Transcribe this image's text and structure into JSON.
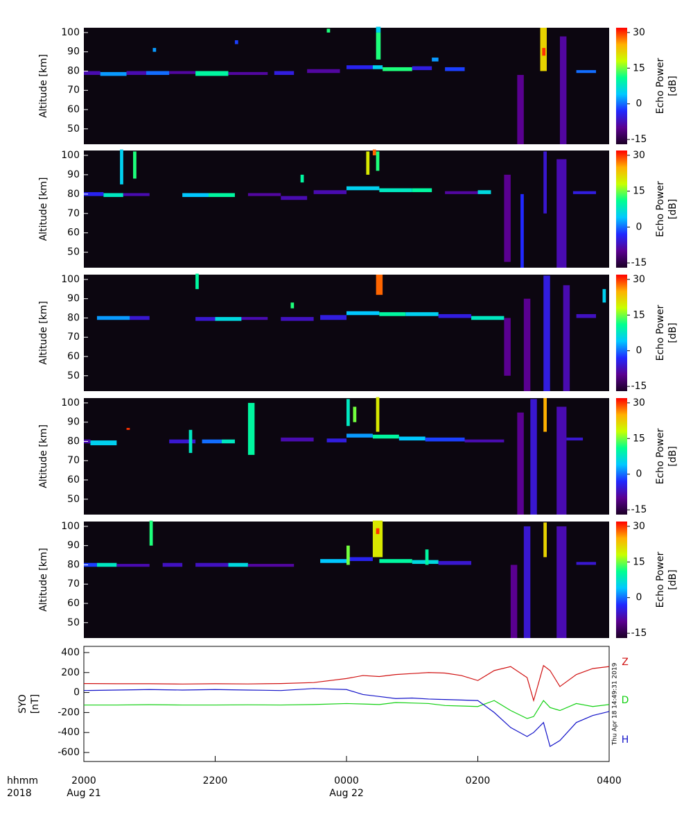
{
  "chart_data": [
    {
      "type": "heatmap",
      "ylabel": "Altitude [km]",
      "colorbar_label": [
        "Echo Power",
        "[dB]"
      ],
      "xlim": [
        20,
        28
      ],
      "ylim": [
        42,
        102.5
      ],
      "yticks": [
        50,
        60,
        70,
        80,
        90,
        100
      ],
      "clim": [
        -17,
        32
      ],
      "cticks": [
        -15,
        0,
        15,
        30
      ],
      "background": "#0c0610",
      "colormap": [
        "#1a0024",
        "#5a0090",
        "#2028ff",
        "#00c8ff",
        "#00ff90",
        "#c8ff00",
        "#ffb000",
        "#ff0000"
      ],
      "echoes": [
        [
          20,
          20.25,
          78,
          80,
          -8
        ],
        [
          20.25,
          20.65,
          77.5,
          79.5,
          2
        ],
        [
          20.65,
          20.95,
          78,
          80,
          -8
        ],
        [
          20.95,
          21.3,
          78,
          80,
          0
        ],
        [
          21.3,
          21.7,
          78.5,
          80,
          -9
        ],
        [
          21.7,
          22.2,
          77.5,
          80,
          10
        ],
        [
          22.2,
          22.8,
          78,
          79.5,
          -9
        ],
        [
          22.9,
          23.2,
          78,
          80,
          -5
        ],
        [
          23.4,
          23.9,
          79,
          81,
          -9
        ],
        [
          24.0,
          24.4,
          81,
          83,
          -4
        ],
        [
          24.4,
          24.55,
          81,
          83,
          5
        ],
        [
          24.55,
          25.0,
          80,
          82,
          12
        ],
        [
          25.0,
          25.3,
          80.5,
          82.5,
          -5
        ],
        [
          25.5,
          25.8,
          80,
          82,
          -2
        ],
        [
          24.45,
          24.52,
          86,
          100,
          12
        ],
        [
          24.45,
          24.52,
          100,
          103,
          5
        ],
        [
          26.6,
          26.7,
          42,
          78,
          -10
        ],
        [
          26.95,
          27.05,
          80,
          102.5,
          22
        ],
        [
          26.98,
          27.03,
          88,
          92,
          30
        ],
        [
          27.25,
          27.35,
          42,
          98,
          -9
        ],
        [
          27.5,
          27.8,
          79,
          80.5,
          0
        ],
        [
          25.3,
          25.4,
          85,
          87,
          2
        ],
        [
          21.05,
          21.1,
          90,
          92,
          2
        ],
        [
          23.7,
          23.75,
          100,
          102,
          12
        ],
        [
          22.3,
          22.35,
          94,
          96,
          -2
        ]
      ]
    },
    {
      "type": "heatmap",
      "ylabel": "Altitude [km]",
      "colorbar_label": [
        "Echo Power",
        "[dB]"
      ],
      "xlim": [
        20,
        28
      ],
      "ylim": [
        42,
        102.5
      ],
      "yticks": [
        50,
        60,
        70,
        80,
        90,
        100
      ],
      "clim": [
        -17,
        32
      ],
      "cticks": [
        -15,
        0,
        15,
        30
      ],
      "background": "#0c0610",
      "colormap": [
        "#1a0024",
        "#5a0090",
        "#2028ff",
        "#00c8ff",
        "#00ff90",
        "#c8ff00",
        "#ffb000",
        "#ff0000"
      ],
      "echoes": [
        [
          20,
          20.3,
          79,
          81,
          -4
        ],
        [
          20.3,
          20.6,
          78.5,
          80.5,
          8
        ],
        [
          20.6,
          21.0,
          79,
          80.5,
          -8
        ],
        [
          21.5,
          21.9,
          78.5,
          80.5,
          4
        ],
        [
          21.9,
          22.3,
          78.5,
          80.5,
          10
        ],
        [
          22.5,
          23.0,
          79,
          80.5,
          -9
        ],
        [
          23.0,
          23.4,
          77,
          79,
          -8
        ],
        [
          23.5,
          24.0,
          80,
          82,
          -8
        ],
        [
          24.0,
          24.5,
          82,
          84,
          5
        ],
        [
          24.5,
          25.0,
          81,
          83,
          8
        ],
        [
          25.0,
          25.3,
          81,
          83,
          10
        ],
        [
          25.5,
          26.0,
          80,
          81.5,
          -9
        ],
        [
          26.0,
          26.2,
          80,
          82,
          6
        ],
        [
          20.55,
          20.6,
          85,
          103,
          5
        ],
        [
          20.75,
          20.8,
          88,
          102,
          12
        ],
        [
          24.3,
          24.35,
          90,
          102,
          20
        ],
        [
          24.45,
          24.5,
          92,
          102,
          12
        ],
        [
          23.3,
          23.35,
          86,
          90,
          10
        ],
        [
          26.4,
          26.5,
          45,
          90,
          -10
        ],
        [
          26.65,
          26.7,
          42,
          80,
          -3
        ],
        [
          27.0,
          27.05,
          70,
          102,
          -6
        ],
        [
          27.2,
          27.35,
          42,
          98,
          -8
        ],
        [
          27.45,
          27.8,
          80,
          81.5,
          -5
        ],
        [
          24.4,
          24.45,
          100,
          103,
          28
        ]
      ]
    },
    {
      "type": "heatmap",
      "ylabel": "Altitude [km]",
      "colorbar_label": [
        "Echo Power",
        "[dB]"
      ],
      "xlim": [
        20,
        28
      ],
      "ylim": [
        42,
        102.5
      ],
      "yticks": [
        50,
        60,
        70,
        80,
        90,
        100
      ],
      "clim": [
        -17,
        32
      ],
      "cticks": [
        -15,
        0,
        15,
        30
      ],
      "background": "#0c0610",
      "colormap": [
        "#1a0024",
        "#5a0090",
        "#2028ff",
        "#00c8ff",
        "#00ff90",
        "#c8ff00",
        "#ffb000",
        "#ff0000"
      ],
      "echoes": [
        [
          20.2,
          20.7,
          79,
          81,
          2
        ],
        [
          20.7,
          21.0,
          79,
          81,
          -6
        ],
        [
          21.7,
          22.0,
          78.5,
          80.5,
          -6
        ],
        [
          22.0,
          22.4,
          78.5,
          80.5,
          6
        ],
        [
          22.4,
          22.8,
          79,
          80.5,
          -8
        ],
        [
          23.0,
          23.5,
          78.5,
          80.5,
          -7
        ],
        [
          23.6,
          24.0,
          79,
          81.5,
          -5
        ],
        [
          24.0,
          24.5,
          81.5,
          83.5,
          4
        ],
        [
          24.5,
          24.9,
          81,
          83,
          10
        ],
        [
          24.9,
          25.4,
          81,
          83,
          5
        ],
        [
          25.4,
          25.9,
          80,
          82,
          -5
        ],
        [
          25.9,
          26.4,
          79,
          81,
          8
        ],
        [
          24.45,
          24.55,
          92,
          102.5,
          28
        ],
        [
          23.15,
          23.2,
          85,
          88,
          12
        ],
        [
          26.4,
          26.5,
          50,
          80,
          -10
        ],
        [
          26.7,
          26.8,
          42,
          90,
          -10
        ],
        [
          27.0,
          27.1,
          42,
          102,
          -5
        ],
        [
          27.3,
          27.4,
          42,
          97,
          -8
        ],
        [
          27.5,
          27.8,
          80,
          82,
          -7
        ],
        [
          21.7,
          21.75,
          95,
          103,
          10
        ],
        [
          27.9,
          27.95,
          88,
          95,
          5
        ]
      ]
    },
    {
      "type": "heatmap",
      "ylabel": "Altitude [km]",
      "colorbar_label": [
        "Echo Power",
        "[dB]"
      ],
      "xlim": [
        20,
        28
      ],
      "ylim": [
        42,
        102.5
      ],
      "yticks": [
        50,
        60,
        70,
        80,
        90,
        100
      ],
      "clim": [
        -17,
        32
      ],
      "cticks": [
        -15,
        0,
        15,
        30
      ],
      "background": "#0c0610",
      "colormap": [
        "#1a0024",
        "#5a0090",
        "#2028ff",
        "#00c8ff",
        "#00ff90",
        "#c8ff00",
        "#ffb000",
        "#ff0000"
      ],
      "echoes": [
        [
          20,
          20.1,
          79,
          81,
          -8
        ],
        [
          20.1,
          20.5,
          78,
          80.5,
          5
        ],
        [
          21.3,
          21.7,
          79,
          81,
          -6
        ],
        [
          21.8,
          22.1,
          79,
          81,
          0
        ],
        [
          22.1,
          22.3,
          79,
          81,
          8
        ],
        [
          23.0,
          23.5,
          80,
          82,
          -8
        ],
        [
          23.7,
          24.0,
          79.5,
          81.5,
          -5
        ],
        [
          24.0,
          24.4,
          82,
          84,
          2
        ],
        [
          24.4,
          24.8,
          81.5,
          83.5,
          10
        ],
        [
          24.8,
          25.2,
          80.5,
          82.5,
          4
        ],
        [
          25.2,
          25.8,
          80,
          82,
          -2
        ],
        [
          25.8,
          26.4,
          79.5,
          81,
          -8
        ],
        [
          21.6,
          21.65,
          74,
          86,
          8
        ],
        [
          22.5,
          22.6,
          73,
          100,
          10
        ],
        [
          24.0,
          24.05,
          88,
          102,
          8
        ],
        [
          24.45,
          24.5,
          85,
          103,
          20
        ],
        [
          24.1,
          24.15,
          90,
          98,
          15
        ],
        [
          26.6,
          26.7,
          42,
          95,
          -10
        ],
        [
          26.8,
          26.9,
          42,
          102,
          -6
        ],
        [
          27.0,
          27.05,
          85,
          102.5,
          25
        ],
        [
          27.2,
          27.35,
          42,
          98,
          -8
        ],
        [
          27.35,
          27.6,
          80.5,
          82,
          -6
        ],
        [
          20.65,
          20.7,
          86,
          87,
          30
        ]
      ]
    },
    {
      "type": "heatmap",
      "ylabel": "Altitude [km]",
      "colorbar_label": [
        "Echo Power",
        "[dB]"
      ],
      "xlim": [
        20,
        28
      ],
      "ylim": [
        42,
        102.5
      ],
      "yticks": [
        50,
        60,
        70,
        80,
        90,
        100
      ],
      "clim": [
        -17,
        32
      ],
      "cticks": [
        -15,
        0,
        15,
        30
      ],
      "background": "#0c0610",
      "colormap": [
        "#1a0024",
        "#5a0090",
        "#2028ff",
        "#00c8ff",
        "#00ff90",
        "#c8ff00",
        "#ffb000",
        "#ff0000"
      ],
      "echoes": [
        [
          20,
          20.2,
          79,
          81,
          -2
        ],
        [
          20.2,
          20.5,
          79,
          81,
          8
        ],
        [
          20.5,
          21.0,
          79,
          80.5,
          -8
        ],
        [
          21.2,
          21.5,
          79,
          81,
          -7
        ],
        [
          21.7,
          22.2,
          79,
          81,
          -7
        ],
        [
          22.2,
          22.5,
          79,
          81,
          6
        ],
        [
          22.5,
          23.2,
          79,
          80.5,
          -9
        ],
        [
          23.6,
          24.0,
          81,
          83,
          4
        ],
        [
          24.0,
          24.4,
          82,
          84,
          -4
        ],
        [
          24.5,
          25.0,
          81,
          83,
          10
        ],
        [
          25.0,
          25.4,
          80.5,
          82.5,
          6
        ],
        [
          25.4,
          25.9,
          80,
          82,
          -6
        ],
        [
          21.0,
          21.05,
          90,
          103,
          12
        ],
        [
          24.4,
          24.55,
          84,
          103,
          20
        ],
        [
          24.45,
          24.5,
          96,
          99,
          30
        ],
        [
          24.0,
          24.05,
          80,
          90,
          15
        ],
        [
          25.2,
          25.25,
          80,
          88,
          10
        ],
        [
          26.5,
          26.6,
          42,
          80,
          -10
        ],
        [
          26.7,
          26.8,
          42,
          100,
          -6
        ],
        [
          27.0,
          27.05,
          84,
          102,
          22
        ],
        [
          27.2,
          27.35,
          42,
          100,
          -8
        ],
        [
          27.5,
          27.8,
          80,
          81.5,
          -6
        ]
      ]
    },
    {
      "type": "line",
      "ylabel": [
        "SYO",
        "[nT]"
      ],
      "xlabel": [
        "hhmm",
        "2018"
      ],
      "timestamp": "Thu Apr 18 14:49:31 2019",
      "xlim": [
        20,
        28
      ],
      "ylim": [
        -690,
        462
      ],
      "yticks": [
        -600,
        -400,
        -200,
        0,
        200,
        400
      ],
      "xticks": [
        {
          "value": 20,
          "label": "2000"
        },
        {
          "value": 22,
          "label": "2200"
        },
        {
          "value": 24,
          "label": "0000"
        },
        {
          "value": 26,
          "label": "0200"
        },
        {
          "value": 28,
          "label": "0400"
        }
      ],
      "xtick_dates": [
        "Aug 21",
        null,
        "Aug 22",
        null,
        null
      ],
      "x": [
        20,
        20.5,
        21,
        21.5,
        22,
        22.5,
        23,
        23.5,
        24,
        24.25,
        24.5,
        24.75,
        25,
        25.25,
        25.5,
        25.75,
        26,
        26.25,
        26.5,
        26.75,
        26.85,
        27,
        27.1,
        27.25,
        27.5,
        27.75,
        28
      ],
      "series": [
        {
          "name": "Z",
          "color": "#d01010",
          "values": [
            90,
            88,
            88,
            85,
            88,
            86,
            90,
            100,
            140,
            170,
            160,
            180,
            190,
            200,
            195,
            170,
            120,
            220,
            260,
            150,
            -80,
            270,
            220,
            60,
            180,
            240,
            260
          ]
        },
        {
          "name": "D",
          "color": "#10d010",
          "values": [
            -125,
            -125,
            -122,
            -125,
            -125,
            -123,
            -125,
            -120,
            -110,
            -115,
            -120,
            -100,
            -105,
            -110,
            -130,
            -135,
            -140,
            -80,
            -180,
            -260,
            -240,
            -80,
            -150,
            -180,
            -110,
            -140,
            -120
          ]
        },
        {
          "name": "H",
          "color": "#1010c8",
          "values": [
            20,
            25,
            30,
            25,
            30,
            25,
            20,
            40,
            30,
            -20,
            -40,
            -60,
            -55,
            -65,
            -70,
            -75,
            -80,
            -200,
            -350,
            -440,
            -400,
            -300,
            -540,
            -480,
            -300,
            -230,
            -190
          ]
        }
      ]
    }
  ]
}
